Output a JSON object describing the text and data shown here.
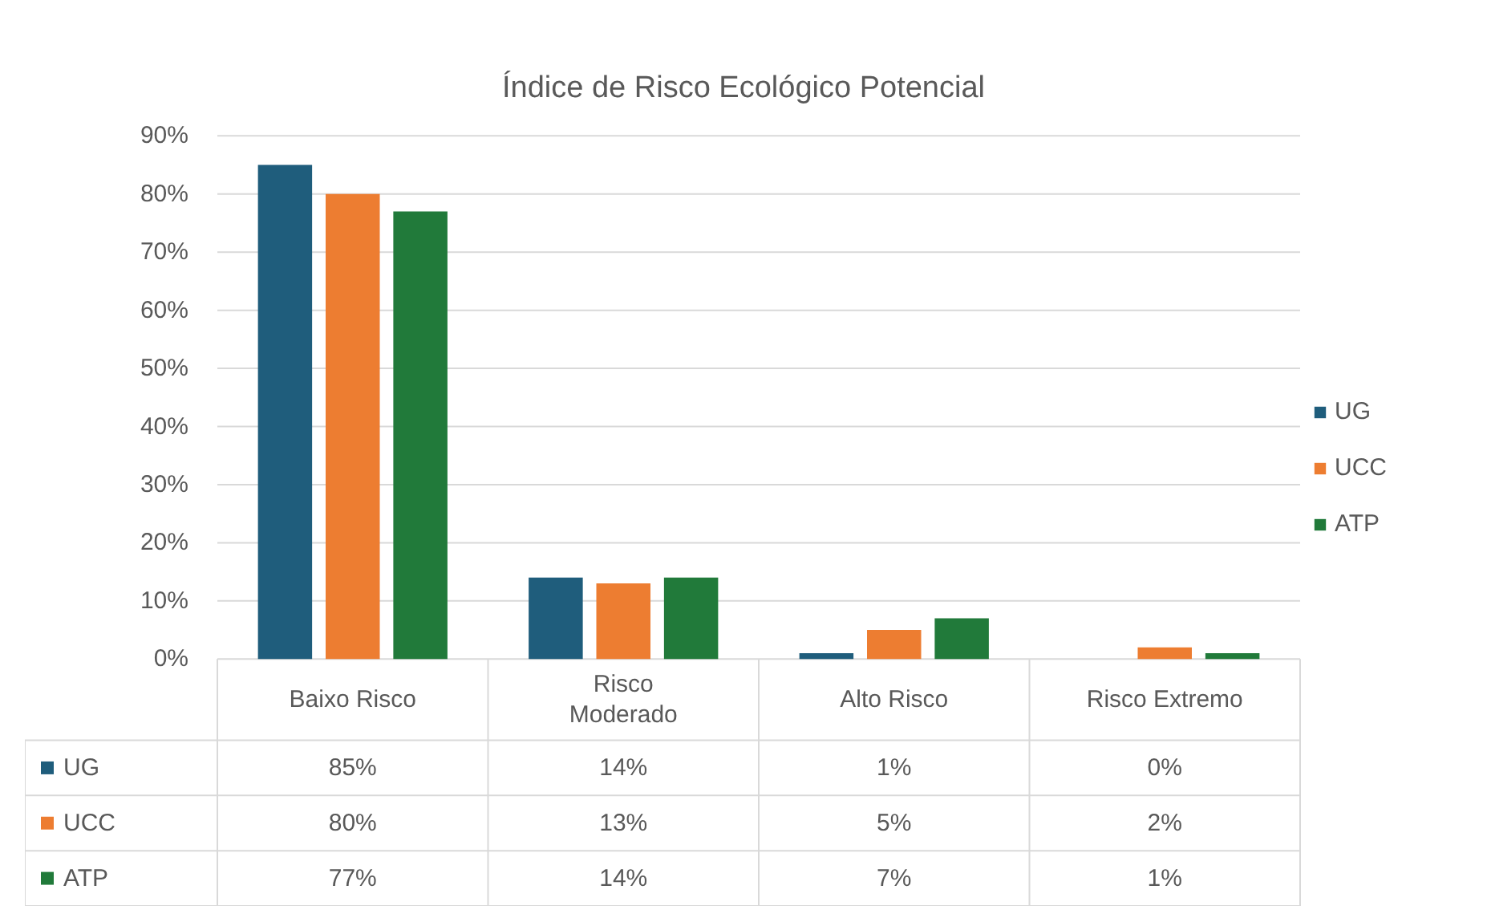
{
  "chart_data": {
    "type": "bar",
    "title": "Índice de Risco Ecológico Potencial",
    "categories": [
      "Baixo Risco",
      "Risco\nModerado",
      "Alto Risco",
      "Risco Extremo"
    ],
    "series": [
      {
        "name": "UG",
        "color": "#1f5d7c",
        "values": [
          85,
          14,
          1,
          0
        ],
        "value_labels": [
          "85%",
          "14%",
          "1%",
          "0%"
        ]
      },
      {
        "name": "UCC",
        "color": "#ed7d31",
        "values": [
          80,
          13,
          5,
          2
        ],
        "value_labels": [
          "80%",
          "13%",
          "5%",
          "2%"
        ]
      },
      {
        "name": "ATP",
        "color": "#217a3a",
        "values": [
          77,
          14,
          7,
          1
        ],
        "value_labels": [
          "77%",
          "14%",
          "7%",
          "1%"
        ]
      }
    ],
    "ylim": [
      0,
      90
    ],
    "yticks": [
      {
        "value": 0,
        "label": "0%"
      },
      {
        "value": 10,
        "label": "10%"
      },
      {
        "value": 20,
        "label": "20%"
      },
      {
        "value": 30,
        "label": "30%"
      },
      {
        "value": 40,
        "label": "40%"
      },
      {
        "value": 50,
        "label": "50%"
      },
      {
        "value": 60,
        "label": "60%"
      },
      {
        "value": 70,
        "label": "70%"
      },
      {
        "value": 80,
        "label": "80%"
      },
      {
        "value": 90,
        "label": "90%"
      }
    ],
    "grid": "y",
    "legend": "right"
  }
}
